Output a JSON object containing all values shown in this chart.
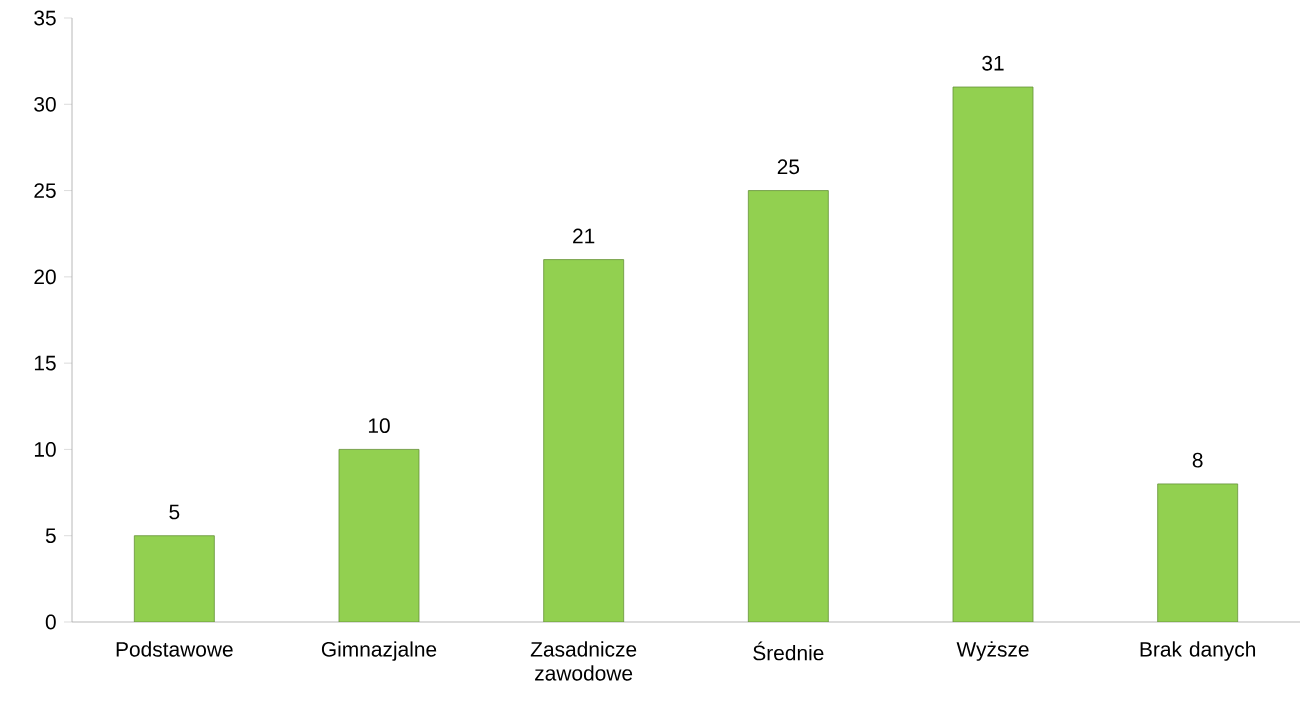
{
  "chart_data": {
    "type": "bar",
    "categories": [
      "Podstawowe",
      "Gimnazjalne",
      "Zasadnicze zawodowe",
      "Średnie",
      "Wyższe",
      "Brak danych"
    ],
    "values": [
      5,
      10,
      21,
      25,
      31,
      8
    ],
    "color": "#92d050",
    "ylim": [
      0,
      35
    ],
    "yticks": [
      0,
      5,
      10,
      15,
      20,
      25,
      30,
      35
    ],
    "data_labels": true
  }
}
